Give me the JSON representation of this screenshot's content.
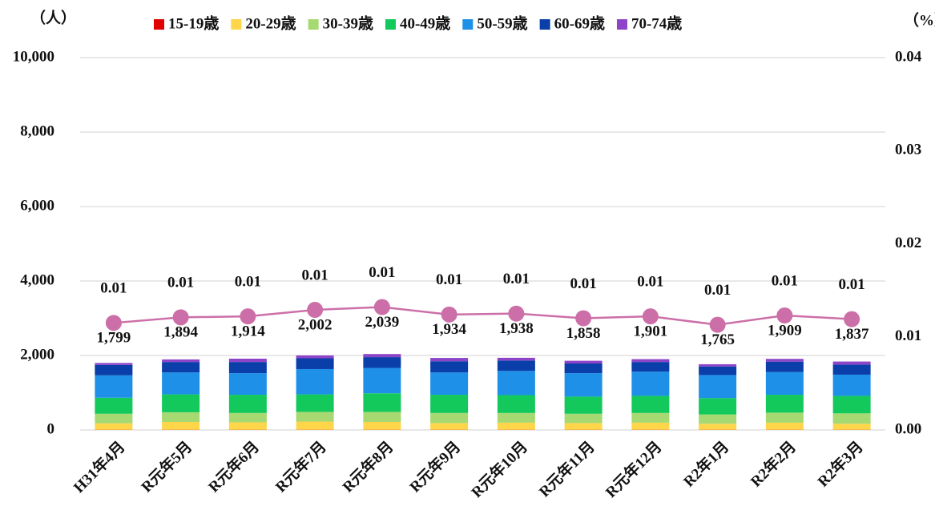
{
  "chart_data": {
    "type": "stacked-bar-line",
    "y_label": "（人）",
    "y2_label": "（%）",
    "categories": [
      "H31年4月",
      "R元年5月",
      "R元年6月",
      "R元年7月",
      "R元年8月",
      "R元年9月",
      "R元年10月",
      "R元年11月",
      "R元年12月",
      "R2年1月",
      "R2年2月",
      "R2年3月"
    ],
    "series": [
      {
        "name": "15-19歳",
        "color": "#e00000",
        "values": [
          5,
          5,
          5,
          5,
          5,
          5,
          5,
          5,
          5,
          5,
          5,
          5
        ]
      },
      {
        "name": "20-29歳",
        "color": "#ffd54a",
        "values": [
          172,
          210,
          200,
          220,
          210,
          180,
          190,
          180,
          190,
          160,
          190,
          160
        ]
      },
      {
        "name": "30-39歳",
        "color": "#a6d971",
        "values": [
          258,
          260,
          250,
          260,
          270,
          270,
          260,
          250,
          260,
          250,
          270,
          280
        ]
      },
      {
        "name": "40-49歳",
        "color": "#13c95c",
        "values": [
          430,
          480,
          490,
          470,
          500,
          490,
          480,
          460,
          460,
          440,
          480,
          470
        ]
      },
      {
        "name": "50-59歳",
        "color": "#1e90e8",
        "values": [
          602,
          590,
          580,
          680,
          680,
          600,
          650,
          630,
          650,
          620,
          610,
          570
        ]
      },
      {
        "name": "60-69歳",
        "color": "#0a3ea8",
        "values": [
          280,
          280,
          300,
          290,
          290,
          300,
          280,
          260,
          260,
          230,
          280,
          270
        ]
      },
      {
        "name": "70-74歳",
        "color": "#8e44c8",
        "values": [
          52,
          69,
          89,
          77,
          84,
          89,
          73,
          73,
          76,
          60,
          74,
          82
        ]
      }
    ],
    "totals": [
      1799,
      1894,
      1914,
      2002,
      2039,
      1934,
      1938,
      1858,
      1901,
      1765,
      1909,
      1837
    ],
    "total_labels": [
      "1,799",
      "1,894",
      "1,914",
      "2,002",
      "2,039",
      "1,934",
      "1,938",
      "1,858",
      "1,901",
      "1,765",
      "1,909",
      "1,837"
    ],
    "line": {
      "color": "#cc6fa8",
      "axis": "y2",
      "values": [
        0.0115,
        0.0121,
        0.0122,
        0.0129,
        0.0132,
        0.0124,
        0.0125,
        0.012,
        0.0122,
        0.0113,
        0.0123,
        0.0119
      ],
      "value_labels": [
        "0.01",
        "0.01",
        "0.01",
        "0.01",
        "0.01",
        "0.01",
        "0.01",
        "0.01",
        "0.01",
        "0.01",
        "0.01",
        "0.01"
      ]
    },
    "ylim": [
      0,
      10000
    ],
    "yticks": [
      {
        "value": 0,
        "label": "0"
      },
      {
        "value": 2000,
        "label": "2,000"
      },
      {
        "value": 4000,
        "label": "4,000"
      },
      {
        "value": 6000,
        "label": "6,000"
      },
      {
        "value": 8000,
        "label": "8,000"
      },
      {
        "value": 10000,
        "label": "10,000"
      }
    ],
    "y2lim": [
      0,
      0.04
    ],
    "y2ticks": [
      {
        "value": 0,
        "label": "0.00"
      },
      {
        "value": 0.01,
        "label": "0.01"
      },
      {
        "value": 0.02,
        "label": "0.02"
      },
      {
        "value": 0.03,
        "label": "0.03"
      },
      {
        "value": 0.04,
        "label": "0.04"
      }
    ],
    "grid": true
  }
}
